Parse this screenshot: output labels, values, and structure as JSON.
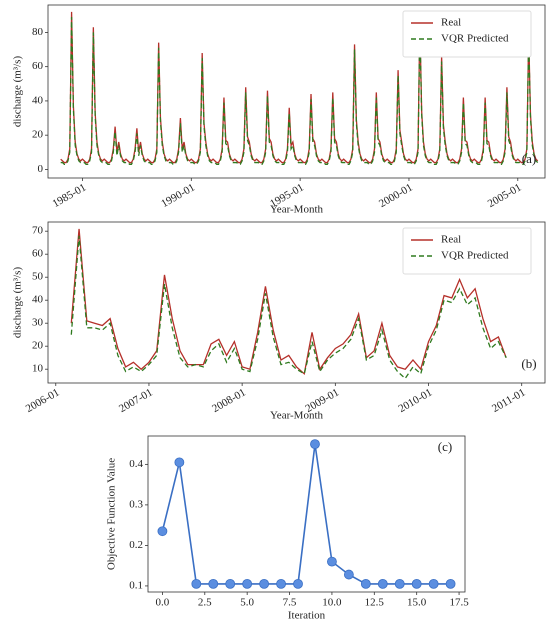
{
  "chart_data": [
    {
      "type": "line",
      "xlabel": "Year-Month",
      "ylabel": "discharge (m³/s)",
      "annotation": "(a)",
      "legend": "upper right",
      "xlim": [
        "1983-06",
        "2006-04"
      ],
      "xticks": [
        "1985-01",
        "1990-01",
        "1995-01",
        "2000-01",
        "2005-01"
      ],
      "ylim": [
        -5,
        96
      ],
      "yticks": [
        0,
        20,
        40,
        60,
        80
      ],
      "x": [
        "1984-01",
        "1984-02",
        "1984-03",
        "1984-04",
        "1984-05",
        "1984-06",
        "1984-07",
        "1984-08",
        "1984-09",
        "1984-10",
        "1984-11",
        "1984-12",
        "1985-01",
        "1985-02",
        "1985-03",
        "1985-04",
        "1985-05",
        "1985-06",
        "1985-07",
        "1985-08",
        "1985-09",
        "1985-10",
        "1985-11",
        "1985-12",
        "1986-01",
        "1986-02",
        "1986-03",
        "1986-04",
        "1986-05",
        "1986-06",
        "1986-07",
        "1986-08",
        "1986-09",
        "1986-10",
        "1986-11",
        "1986-12",
        "1987-01",
        "1987-02",
        "1987-03",
        "1987-04",
        "1987-05",
        "1987-06",
        "1987-07",
        "1987-08",
        "1987-09",
        "1987-10",
        "1987-11",
        "1987-12",
        "1988-01",
        "1988-02",
        "1988-03",
        "1988-04",
        "1988-05",
        "1988-06",
        "1988-07",
        "1988-08",
        "1988-09",
        "1988-10",
        "1988-11",
        "1988-12",
        "1989-01",
        "1989-02",
        "1989-03",
        "1989-04",
        "1989-05",
        "1989-06",
        "1989-07",
        "1989-08",
        "1989-09",
        "1989-10",
        "1989-11",
        "1989-12",
        "1990-01",
        "1990-02",
        "1990-03",
        "1990-04",
        "1990-05",
        "1990-06",
        "1990-07",
        "1990-08",
        "1990-09",
        "1990-10",
        "1990-11",
        "1990-12",
        "1991-01",
        "1991-02",
        "1991-03",
        "1991-04",
        "1991-05",
        "1991-06",
        "1991-07",
        "1991-08",
        "1991-09",
        "1991-10",
        "1991-11",
        "1991-12",
        "1992-01",
        "1992-02",
        "1992-03",
        "1992-04",
        "1992-05",
        "1992-06",
        "1992-07",
        "1992-08",
        "1992-09",
        "1992-10",
        "1992-11",
        "1992-12",
        "1993-01",
        "1993-02",
        "1993-03",
        "1993-04",
        "1993-05",
        "1993-06",
        "1993-07",
        "1993-08",
        "1993-09",
        "1993-10",
        "1993-11",
        "1993-12",
        "1994-01",
        "1994-02",
        "1994-03",
        "1994-04",
        "1994-05",
        "1994-06",
        "1994-07",
        "1994-08",
        "1994-09",
        "1994-10",
        "1994-11",
        "1994-12",
        "1995-01",
        "1995-02",
        "1995-03",
        "1995-04",
        "1995-05",
        "1995-06",
        "1995-07",
        "1995-08",
        "1995-09",
        "1995-10",
        "1995-11",
        "1995-12",
        "1996-01",
        "1996-02",
        "1996-03",
        "1996-04",
        "1996-05",
        "1996-06",
        "1996-07",
        "1996-08",
        "1996-09",
        "1996-10",
        "1996-11",
        "1996-12",
        "1997-01",
        "1997-02",
        "1997-03",
        "1997-04",
        "1997-05",
        "1997-06",
        "1997-07",
        "1997-08",
        "1997-09",
        "1997-10",
        "1997-11",
        "1997-12",
        "1998-01",
        "1998-02",
        "1998-03",
        "1998-04",
        "1998-05",
        "1998-06",
        "1998-07",
        "1998-08",
        "1998-09",
        "1998-10",
        "1998-11",
        "1998-12",
        "1999-01",
        "1999-02",
        "1999-03",
        "1999-04",
        "1999-05",
        "1999-06",
        "1999-07",
        "1999-08",
        "1999-09",
        "1999-10",
        "1999-11",
        "1999-12",
        "2000-01",
        "2000-02",
        "2000-03",
        "2000-04",
        "2000-05",
        "2000-06",
        "2000-07",
        "2000-08",
        "2000-09",
        "2000-10",
        "2000-11",
        "2000-12",
        "2001-01",
        "2001-02",
        "2001-03",
        "2001-04",
        "2001-05",
        "2001-06",
        "2001-07",
        "2001-08",
        "2001-09",
        "2001-10",
        "2001-11",
        "2001-12",
        "2002-01",
        "2002-02",
        "2002-03",
        "2002-04",
        "2002-05",
        "2002-06",
        "2002-07",
        "2002-08",
        "2002-09",
        "2002-10",
        "2002-11",
        "2002-12",
        "2003-01",
        "2003-02",
        "2003-03",
        "2003-04",
        "2003-05",
        "2003-06",
        "2003-07",
        "2003-08",
        "2003-09",
        "2003-10",
        "2003-11",
        "2003-12",
        "2004-01",
        "2004-02",
        "2004-03",
        "2004-04",
        "2004-05",
        "2004-06",
        "2004-07",
        "2004-08",
        "2004-09",
        "2004-10",
        "2004-11",
        "2004-12",
        "2005-01",
        "2005-02",
        "2005-03",
        "2005-04",
        "2005-05",
        "2005-06",
        "2005-07",
        "2005-08",
        "2005-09",
        "2005-10",
        "2005-11",
        "2005-12"
      ],
      "series": [
        {
          "name": "Real",
          "color": "#b5302a",
          "dash": false,
          "values": [
            6,
            5,
            4,
            4,
            6,
            12,
            92,
            37,
            16,
            9,
            6,
            5,
            6,
            5,
            4,
            4,
            6,
            12,
            83,
            33,
            16,
            9,
            6,
            5,
            6,
            5,
            4,
            4,
            6,
            12,
            25,
            10,
            16,
            9,
            6,
            5,
            6,
            5,
            4,
            4,
            6,
            12,
            24,
            10,
            16,
            9,
            6,
            5,
            6,
            5,
            4,
            4,
            6,
            12,
            74,
            30,
            16,
            9,
            6,
            5,
            6,
            5,
            4,
            4,
            6,
            12,
            30,
            12,
            16,
            9,
            6,
            5,
            6,
            5,
            4,
            4,
            6,
            12,
            68,
            27,
            16,
            9,
            6,
            5,
            6,
            5,
            4,
            4,
            6,
            12,
            42,
            17,
            16,
            9,
            6,
            5,
            6,
            5,
            4,
            4,
            6,
            12,
            48,
            19,
            16,
            9,
            6,
            5,
            6,
            5,
            4,
            4,
            6,
            12,
            46,
            18,
            16,
            9,
            6,
            5,
            6,
            5,
            4,
            4,
            6,
            12,
            36,
            14,
            16,
            9,
            6,
            5,
            6,
            5,
            4,
            4,
            6,
            12,
            44,
            18,
            16,
            9,
            6,
            5,
            6,
            5,
            4,
            4,
            6,
            12,
            45,
            18,
            16,
            9,
            6,
            5,
            6,
            5,
            4,
            4,
            6,
            12,
            73,
            29,
            16,
            9,
            6,
            5,
            6,
            5,
            4,
            4,
            6,
            12,
            45,
            18,
            16,
            9,
            6,
            5,
            6,
            5,
            4,
            4,
            6,
            12,
            58,
            23,
            16,
            9,
            6,
            5,
            6,
            5,
            4,
            4,
            6,
            12,
            86,
            34,
            16,
            9,
            6,
            5,
            6,
            5,
            4,
            4,
            6,
            12,
            66,
            26,
            16,
            9,
            6,
            5,
            6,
            5,
            4,
            4,
            6,
            12,
            42,
            17,
            16,
            9,
            6,
            5,
            6,
            5,
            4,
            4,
            6,
            12,
            42,
            17,
            16,
            9,
            6,
            5,
            6,
            5,
            4,
            4,
            6,
            12,
            48,
            19,
            16,
            9,
            6,
            5,
            6,
            5,
            4,
            4,
            6,
            12,
            79,
            32,
            16,
            9,
            6,
            5
          ]
        },
        {
          "name": "VQR Predicted",
          "color": "#2f7a1f",
          "dash": true,
          "values": [
            4,
            4,
            3,
            3,
            5,
            10,
            89,
            35,
            14,
            8,
            5,
            4,
            4,
            4,
            3,
            3,
            5,
            10,
            80,
            31,
            14,
            8,
            5,
            4,
            4,
            4,
            3,
            3,
            5,
            10,
            22,
            8,
            14,
            8,
            5,
            4,
            4,
            4,
            3,
            3,
            5,
            10,
            21,
            8,
            14,
            8,
            5,
            4,
            4,
            4,
            3,
            3,
            5,
            10,
            71,
            28,
            14,
            8,
            5,
            4,
            4,
            4,
            3,
            3,
            5,
            10,
            27,
            10,
            14,
            8,
            5,
            4,
            4,
            4,
            3,
            3,
            5,
            10,
            65,
            25,
            14,
            8,
            5,
            4,
            4,
            4,
            3,
            3,
            5,
            10,
            39,
            15,
            14,
            8,
            5,
            4,
            4,
            4,
            3,
            3,
            5,
            10,
            45,
            17,
            14,
            8,
            5,
            4,
            4,
            4,
            3,
            3,
            5,
            10,
            43,
            16,
            14,
            8,
            5,
            4,
            4,
            4,
            3,
            3,
            5,
            10,
            33,
            12,
            14,
            8,
            5,
            4,
            4,
            4,
            3,
            3,
            5,
            10,
            41,
            16,
            14,
            8,
            5,
            4,
            4,
            4,
            3,
            3,
            5,
            10,
            42,
            16,
            14,
            8,
            5,
            4,
            4,
            4,
            3,
            3,
            5,
            10,
            70,
            27,
            14,
            8,
            5,
            4,
            4,
            4,
            3,
            3,
            5,
            10,
            42,
            16,
            14,
            8,
            5,
            4,
            4,
            4,
            3,
            3,
            5,
            10,
            55,
            21,
            14,
            8,
            5,
            4,
            4,
            4,
            3,
            3,
            5,
            10,
            83,
            32,
            14,
            8,
            5,
            4,
            4,
            4,
            3,
            3,
            5,
            10,
            63,
            24,
            14,
            8,
            5,
            4,
            4,
            4,
            3,
            3,
            5,
            10,
            39,
            15,
            14,
            8,
            5,
            4,
            4,
            4,
            3,
            3,
            5,
            10,
            39,
            15,
            14,
            8,
            5,
            4,
            4,
            4,
            3,
            3,
            5,
            10,
            45,
            17,
            14,
            8,
            5,
            4,
            4,
            4,
            3,
            3,
            5,
            10,
            76,
            30,
            14,
            8,
            5,
            4
          ]
        }
      ]
    },
    {
      "type": "line",
      "xlabel": "Year-Month",
      "ylabel": "discharge (m³/s)",
      "annotation": "(b)",
      "legend": "upper right",
      "xlim": [
        "2005-12",
        "2011-04"
      ],
      "xticks": [
        "2006-01",
        "2007-01",
        "2008-01",
        "2009-01",
        "2010-01",
        "2011-01"
      ],
      "ylim": [
        4,
        74
      ],
      "yticks": [
        10,
        20,
        30,
        40,
        50,
        60,
        70
      ],
      "x": [
        "2006-03",
        "2006-04",
        "2006-05",
        "2006-06",
        "2006-07",
        "2006-08",
        "2006-09",
        "2006-10",
        "2006-11",
        "2006-12",
        "2007-01",
        "2007-02",
        "2007-03",
        "2007-04",
        "2007-05",
        "2007-06",
        "2007-07",
        "2007-08",
        "2007-09",
        "2007-10",
        "2007-11",
        "2007-12",
        "2008-01",
        "2008-02",
        "2008-03",
        "2008-04",
        "2008-05",
        "2008-06",
        "2008-07",
        "2008-08",
        "2008-09",
        "2008-10",
        "2008-11",
        "2008-12",
        "2009-01",
        "2009-02",
        "2009-03",
        "2009-04",
        "2009-05",
        "2009-06",
        "2009-07",
        "2009-08",
        "2009-09",
        "2009-10",
        "2009-11",
        "2009-12",
        "2010-01",
        "2010-02",
        "2010-03",
        "2010-04",
        "2010-05",
        "2010-06",
        "2010-07",
        "2010-08",
        "2010-09",
        "2010-10",
        "2010-11"
      ],
      "series": [
        {
          "name": "Real",
          "color": "#b5302a",
          "dash": false,
          "values": [
            30,
            71,
            31,
            30,
            29,
            32,
            19,
            11,
            13,
            10,
            13,
            18,
            51,
            32,
            18,
            12,
            12,
            12,
            21,
            23,
            16,
            22,
            11,
            10,
            26,
            46,
            27,
            14,
            16,
            11,
            8,
            26,
            10,
            15,
            19,
            21,
            25,
            34,
            15,
            18,
            30,
            16,
            11,
            10,
            14,
            10,
            22,
            29,
            42,
            41,
            49,
            41,
            45,
            32,
            22,
            24,
            15
          ]
        },
        {
          "name": "VQR Predicted",
          "color": "#2f7a1f",
          "dash": true,
          "values": [
            25,
            68,
            28,
            28,
            27,
            30,
            16,
            9,
            11,
            9,
            12,
            16,
            47,
            28,
            15,
            11,
            12,
            11,
            18,
            21,
            13,
            19,
            10,
            9,
            23,
            43,
            24,
            12,
            13,
            10,
            8,
            22,
            9,
            14,
            17,
            19,
            23,
            32,
            14,
            16,
            27,
            14,
            9,
            6,
            11,
            8,
            20,
            27,
            40,
            39,
            45,
            38,
            41,
            28,
            19,
            22,
            15
          ]
        }
      ]
    },
    {
      "type": "line",
      "markers": true,
      "xlabel": "Iteration",
      "ylabel": "Objective Function Value",
      "annotation": "(c)",
      "color": "#3a6fc4",
      "xlim": [
        -0.85,
        17.85
      ],
      "xticks": [
        {
          "value": 0,
          "label": "0.0"
        },
        {
          "value": 2.5,
          "label": "2.5"
        },
        {
          "value": 5,
          "label": "5.0"
        },
        {
          "value": 7.5,
          "label": "7.5"
        },
        {
          "value": 10,
          "label": "10.0"
        },
        {
          "value": 12.5,
          "label": "12.5"
        },
        {
          "value": 15,
          "label": "15.0"
        },
        {
          "value": 17.5,
          "label": "17.5"
        }
      ],
      "ylim": [
        0.085,
        0.47
      ],
      "yticks": [
        0.1,
        0.2,
        0.3,
        0.4
      ],
      "x": [
        0,
        1,
        2,
        3,
        4,
        5,
        6,
        7,
        8,
        9,
        10,
        11,
        12,
        13,
        14,
        15,
        16,
        17
      ],
      "values": [
        0.235,
        0.405,
        0.105,
        0.105,
        0.105,
        0.105,
        0.105,
        0.105,
        0.105,
        0.45,
        0.16,
        0.128,
        0.105,
        0.105,
        0.105,
        0.105,
        0.105,
        0.105
      ]
    }
  ]
}
